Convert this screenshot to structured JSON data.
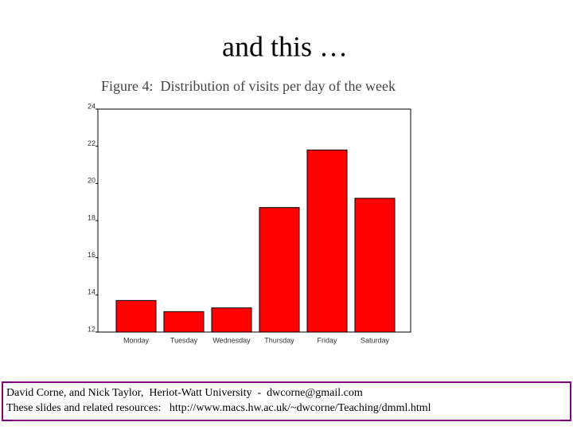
{
  "slide": {
    "title": "and this …",
    "footer": [
      "David Corne, and Nick Taylor,  Heriot-Watt University  -  dwcorne@gmail.com",
      "These slides and related resources:   http://www.macs.hw.ac.uk/~dwcorne/Teaching/dmml.html"
    ]
  },
  "chart_data": {
    "type": "bar",
    "title": "Figure 4:  Distribution of visits per day of the week",
    "categories": [
      "Monday",
      "Tuesday",
      "Wednesday",
      "Thursday",
      "Friday",
      "Saturday"
    ],
    "values": [
      13.7,
      13.1,
      13.3,
      18.7,
      21.8,
      19.2
    ],
    "color": "#ff0000",
    "ylim": [
      12,
      24
    ],
    "yticks": [
      12,
      14,
      16,
      18,
      20,
      22,
      24
    ],
    "grid": false
  }
}
